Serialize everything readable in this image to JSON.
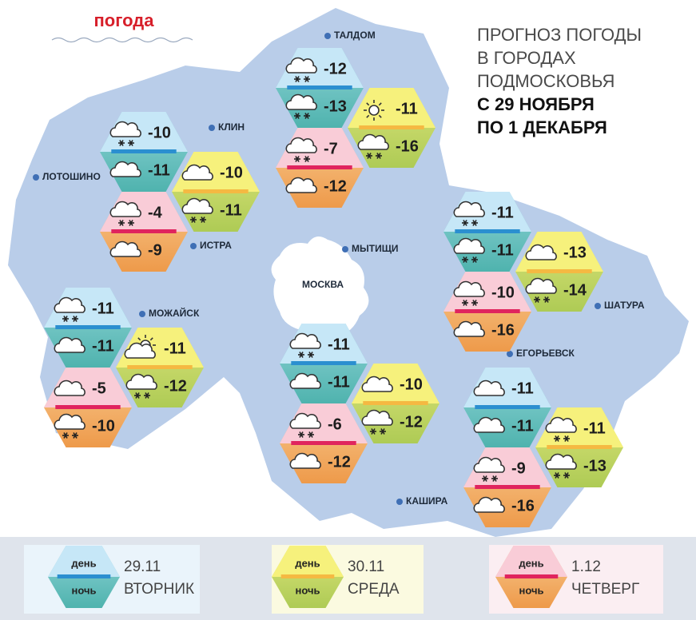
{
  "header": {
    "title": "погода"
  },
  "headline": {
    "lines": [
      "ПРОГНОЗ ПОГОДЫ",
      "В ГОРОДАХ",
      "ПОДМОСКОВЬЯ"
    ],
    "dates": [
      "С 29 НОЯБРЯ",
      "ПО 1 ДЕКАБРЯ"
    ]
  },
  "cities": [
    "ТАЛДОМ",
    "КЛИН",
    "ЛОТОШИНО",
    "ИСТРА",
    "МЫТИЩИ",
    "МОСКВА",
    "МОЖАЙСК",
    "ШАТУРА",
    "ЕГОРЬЕВСК",
    "КАШИРА"
  ],
  "forecasts": [
    {
      "hexes": [
        {
          "day": -10,
          "night": -11
        },
        {
          "day": -10,
          "night": -11
        },
        {
          "day": -4,
          "night": -9
        }
      ]
    },
    {
      "hexes": [
        {
          "day": -12,
          "night": -13
        },
        {
          "day": -11,
          "night": -16
        },
        {
          "day": -7,
          "night": -12
        }
      ]
    },
    {
      "hexes": [
        {
          "day": -11,
          "night": -11
        },
        {
          "day": -11,
          "night": -12
        },
        {
          "day": -5,
          "night": -10
        }
      ]
    },
    {
      "hexes": [
        {
          "day": -11,
          "night": -11
        },
        {
          "day": -10,
          "night": -12
        },
        {
          "day": -6,
          "night": -12
        }
      ]
    },
    {
      "hexes": [
        {
          "day": -11,
          "night": -11
        },
        {
          "day": -13,
          "night": -14
        },
        {
          "day": -10,
          "night": -16
        }
      ]
    },
    {
      "hexes": [
        {
          "day": -11,
          "night": -11
        },
        {
          "day": -11,
          "night": -13
        },
        {
          "day": -9,
          "night": -16
        }
      ]
    }
  ],
  "legend": [
    {
      "day_label": "день",
      "night_label": "ночь",
      "date": "29.11",
      "weekday": "ВТОРНИК"
    },
    {
      "day_label": "день",
      "night_label": "ночь",
      "date": "30.11",
      "weekday": "СРЕДА"
    },
    {
      "day_label": "день",
      "night_label": "ночь",
      "date": "1.12",
      "weekday": "ЧЕТВЕРГ"
    }
  ]
}
